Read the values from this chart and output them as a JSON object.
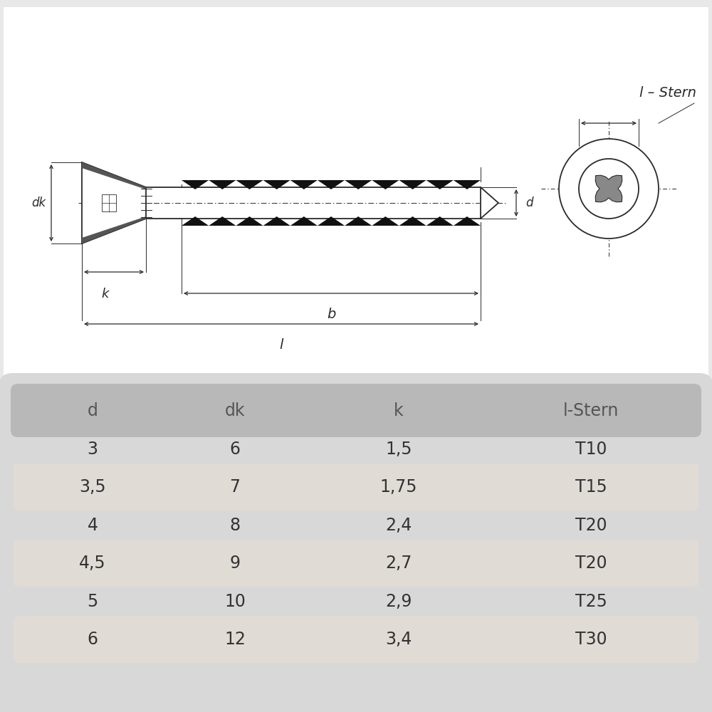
{
  "bg_color": "#e8e8e8",
  "diagram_bg": "#ffffff",
  "table_bg": "#d8d8d8",
  "table_header_bg": "#b8b8b8",
  "row_alt_bg": "#e0dbd5",
  "row_normal_bg": "#eeebe8",
  "header_cols": [
    "d",
    "dk",
    "k",
    "l-Stern"
  ],
  "rows": [
    [
      "3",
      "6",
      "1,5",
      "T10"
    ],
    [
      "3,5",
      "7",
      "1,75",
      "T15"
    ],
    [
      "4",
      "8",
      "2,4",
      "T20"
    ],
    [
      "4,5",
      "9",
      "2,7",
      "T20"
    ],
    [
      "5",
      "10",
      "2,9",
      "T25"
    ],
    [
      "6",
      "12",
      "3,4",
      "T30"
    ]
  ],
  "text_color": "#333333",
  "header_text_color": "#555555",
  "line_color": "#2a2a2a",
  "diagram_line_color": "#2a2a2a"
}
